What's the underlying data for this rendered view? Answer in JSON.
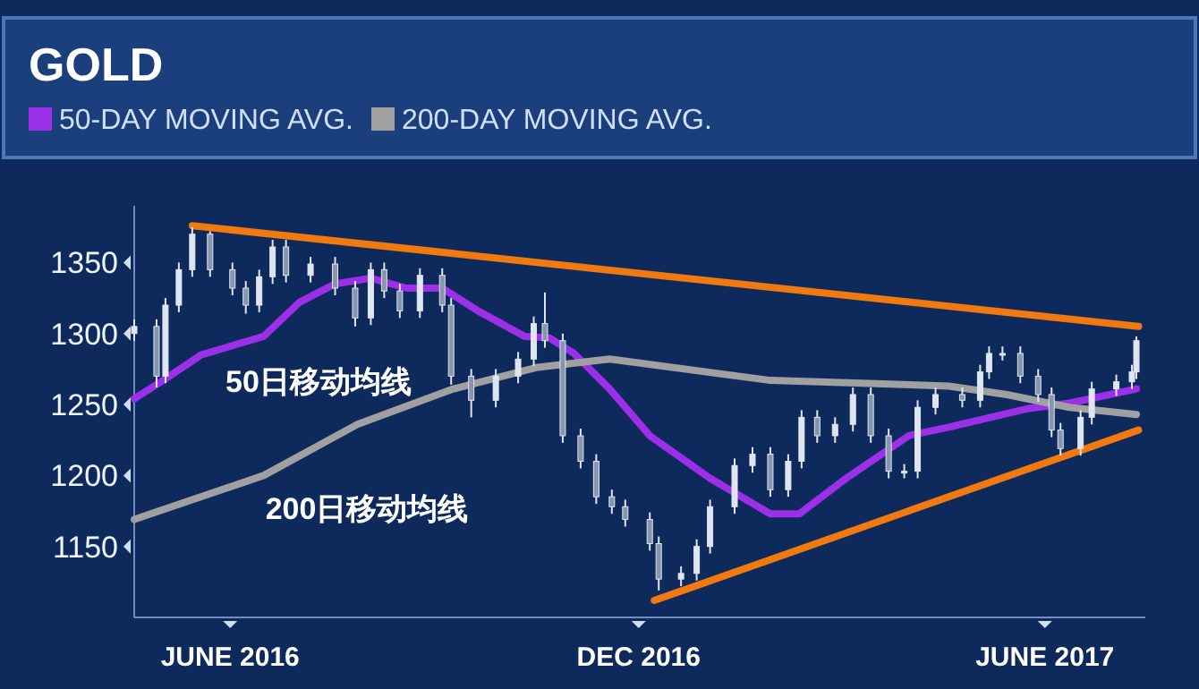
{
  "chart_data": {
    "type": "candlestick",
    "title": "GOLD",
    "legend": "top",
    "color": "#dfe6f0",
    "ylim": [
      1100,
      1390
    ],
    "yticks": [
      1150,
      1200,
      1250,
      1300,
      1350
    ],
    "xlim": [
      "2016-04-19",
      "2017-07-16"
    ],
    "xticks": [
      {
        "value": "2016-06-01",
        "label": "JUNE 2016"
      },
      {
        "value": "2016-12-01",
        "label": "DEC 2016"
      },
      {
        "value": "2017-06-01",
        "label": "JUNE 2017"
      }
    ],
    "x": [
      "2016-04-19",
      "2016-04-29",
      "2016-05-03",
      "2016-05-09",
      "2016-05-15",
      "2016-05-23",
      "2016-06-02",
      "2016-06-08",
      "2016-06-14",
      "2016-06-20",
      "2016-06-26",
      "2016-07-07",
      "2016-07-18",
      "2016-07-27",
      "2016-08-03",
      "2016-08-09",
      "2016-08-16",
      "2016-08-25",
      "2016-09-04",
      "2016-09-08",
      "2016-09-17",
      "2016-09-28",
      "2016-10-08",
      "2016-10-15",
      "2016-10-20",
      "2016-10-28",
      "2016-11-05",
      "2016-11-12",
      "2016-11-19",
      "2016-11-25",
      "2016-12-06",
      "2016-12-10",
      "2016-12-20",
      "2016-12-27",
      "2017-01-02",
      "2017-01-13",
      "2017-01-21",
      "2017-01-29",
      "2017-02-06",
      "2017-02-12",
      "2017-02-19",
      "2017-02-27",
      "2017-03-07",
      "2017-03-15",
      "2017-03-23",
      "2017-03-30",
      "2017-04-05",
      "2017-04-13",
      "2017-04-25",
      "2017-05-03",
      "2017-05-07",
      "2017-05-13",
      "2017-05-21",
      "2017-05-29",
      "2017-06-04",
      "2017-06-08",
      "2017-06-17",
      "2017-06-22",
      "2017-07-03",
      "2017-07-10",
      "2017-07-12"
    ],
    "ohlc": [
      [
        1300,
        1310,
        1295,
        1305
      ],
      [
        1305,
        1310,
        1262,
        1270
      ],
      [
        1270,
        1325,
        1265,
        1320
      ],
      [
        1320,
        1350,
        1315,
        1345
      ],
      [
        1345,
        1375,
        1340,
        1370
      ],
      [
        1370,
        1372,
        1340,
        1345
      ],
      [
        1345,
        1350,
        1327,
        1332
      ],
      [
        1332,
        1337,
        1314,
        1320
      ],
      [
        1320,
        1345,
        1315,
        1340
      ],
      [
        1340,
        1366,
        1335,
        1361
      ],
      [
        1361,
        1366,
        1336,
        1341
      ],
      [
        1341,
        1354,
        1336,
        1349
      ],
      [
        1349,
        1354,
        1327,
        1332
      ],
      [
        1332,
        1337,
        1305,
        1311
      ],
      [
        1311,
        1350,
        1306,
        1345
      ],
      [
        1345,
        1350,
        1325,
        1330
      ],
      [
        1330,
        1335,
        1311,
        1316
      ],
      [
        1316,
        1346,
        1311,
        1341
      ],
      [
        1341,
        1346,
        1315,
        1320
      ],
      [
        1320,
        1325,
        1264,
        1270
      ],
      [
        1270,
        1275,
        1241,
        1253
      ],
      [
        1253,
        1275,
        1248,
        1270
      ],
      [
        1270,
        1287,
        1265,
        1282
      ],
      [
        1282,
        1312,
        1277,
        1307
      ],
      [
        1307,
        1329,
        1290,
        1295
      ],
      [
        1295,
        1300,
        1223,
        1228
      ],
      [
        1228,
        1233,
        1205,
        1210
      ],
      [
        1210,
        1215,
        1180,
        1185
      ],
      [
        1185,
        1190,
        1173,
        1178
      ],
      [
        1178,
        1183,
        1164,
        1169
      ],
      [
        1169,
        1174,
        1147,
        1152
      ],
      [
        1152,
        1157,
        1119,
        1127
      ],
      [
        1127,
        1136,
        1122,
        1131
      ],
      [
        1131,
        1155,
        1126,
        1150
      ],
      [
        1150,
        1183,
        1145,
        1178
      ],
      [
        1178,
        1212,
        1173,
        1207
      ],
      [
        1207,
        1220,
        1202,
        1215
      ],
      [
        1215,
        1220,
        1185,
        1190
      ],
      [
        1190,
        1215,
        1185,
        1210
      ],
      [
        1210,
        1246,
        1205,
        1241
      ],
      [
        1241,
        1246,
        1223,
        1228
      ],
      [
        1228,
        1241,
        1223,
        1236
      ],
      [
        1236,
        1262,
        1231,
        1257
      ],
      [
        1257,
        1262,
        1223,
        1228
      ],
      [
        1228,
        1233,
        1198,
        1203
      ],
      [
        1203,
        1208,
        1198,
        1203
      ],
      [
        1203,
        1253,
        1198,
        1248
      ],
      [
        1248,
        1262,
        1243,
        1257
      ],
      [
        1257,
        1262,
        1248,
        1253
      ],
      [
        1253,
        1278,
        1248,
        1273
      ],
      [
        1273,
        1291,
        1268,
        1286
      ],
      [
        1286,
        1291,
        1281,
        1286
      ],
      [
        1286,
        1291,
        1265,
        1270
      ],
      [
        1270,
        1275,
        1252,
        1257
      ],
      [
        1257,
        1262,
        1227,
        1232
      ],
      [
        1232,
        1237,
        1214,
        1219
      ],
      [
        1219,
        1246,
        1214,
        1241
      ],
      [
        1241,
        1266,
        1236,
        1261
      ],
      [
        1261,
        1271,
        1256,
        1266
      ],
      [
        1266,
        1278,
        1261,
        1273
      ],
      [
        1273,
        1298,
        1268,
        1295
      ]
    ],
    "series": [
      {
        "type": "line",
        "name": "50-DAY MOVING AVG.",
        "color": "#9b30e8",
        "x": [
          "2016-04-19",
          "2016-05-01",
          "2016-05-19",
          "2016-06-16",
          "2016-07-02",
          "2016-07-18",
          "2016-08-03",
          "2016-08-19",
          "2016-09-04",
          "2016-09-20",
          "2016-10-11",
          "2016-10-22",
          "2016-11-02",
          "2016-11-18",
          "2016-12-06",
          "2017-01-02",
          "2017-01-29",
          "2017-02-11",
          "2017-03-04",
          "2017-04-01",
          "2017-04-19",
          "2017-05-24",
          "2017-06-12",
          "2017-07-12"
        ],
        "values": [
          1254,
          1266,
          1285,
          1298,
          1322,
          1335,
          1339,
          1332,
          1332,
          1316,
          1298,
          1297,
          1286,
          1261,
          1228,
          1198,
          1173,
          1173,
          1198,
          1228,
          1234,
          1247,
          1251,
          1261
        ]
      },
      {
        "type": "line",
        "name": "200-DAY MOVING AVG.",
        "color": "#a0a0a0",
        "x": [
          "2016-04-19",
          "2016-06-16",
          "2016-07-28",
          "2016-09-09",
          "2016-10-16",
          "2016-11-18",
          "2017-01-29",
          "2017-04-19",
          "2017-05-15",
          "2017-06-12",
          "2017-07-12"
        ],
        "values": [
          1169,
          1200,
          1236,
          1261,
          1276,
          1282,
          1267,
          1263,
          1257,
          1248,
          1243
        ]
      },
      {
        "type": "line",
        "color": "#f07a10",
        "x": [
          "2016-05-15",
          "2017-07-13"
        ],
        "values": [
          1376,
          1305
        ]
      },
      {
        "type": "line",
        "color": "#f07a10",
        "x": [
          "2016-12-08",
          "2017-07-13"
        ],
        "values": [
          1112,
          1232
        ]
      }
    ],
    "annotations": [
      "50日移动均线",
      "200日移动均线"
    ]
  }
}
